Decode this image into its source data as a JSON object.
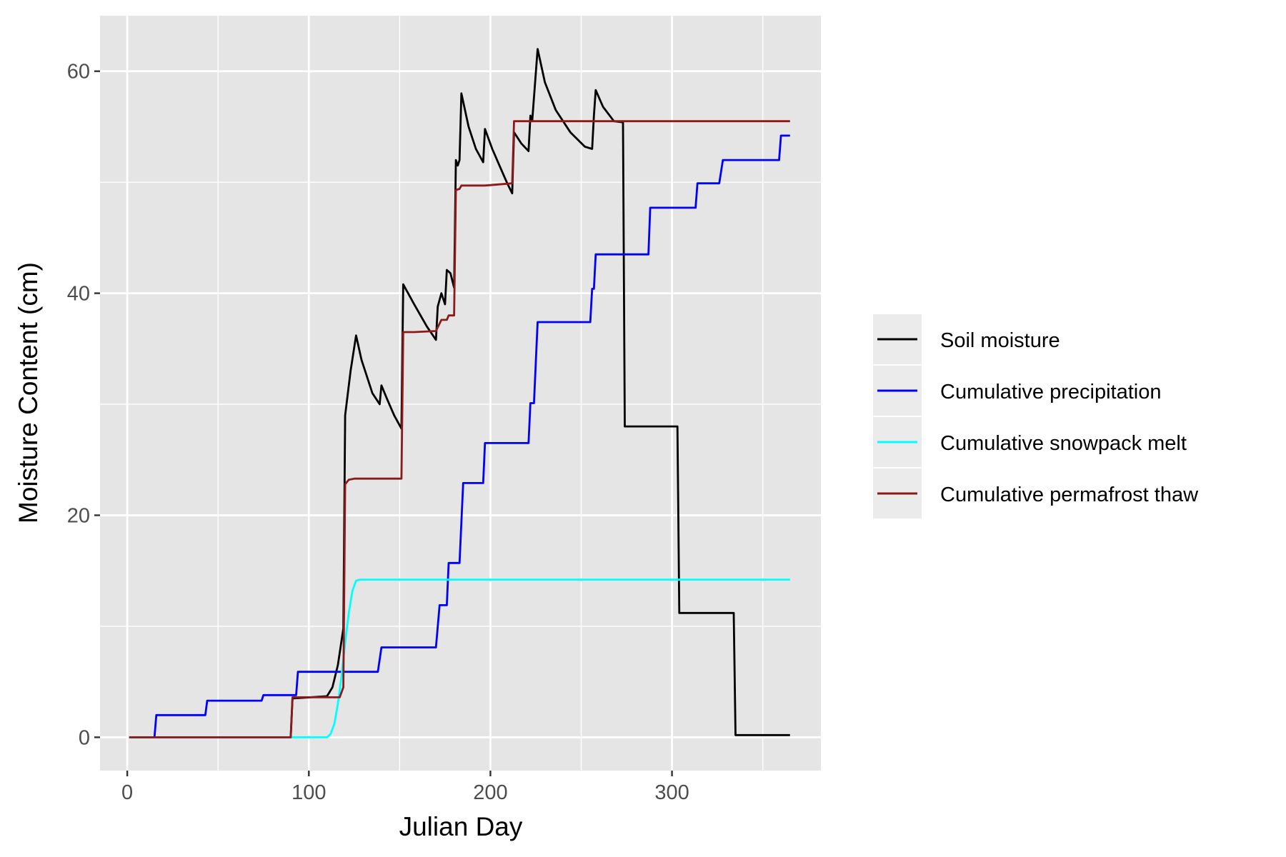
{
  "chart_data": {
    "type": "line",
    "title": "",
    "xlabel": "Julian Day",
    "ylabel": "Moisture Content (cm)",
    "xlim": [
      -15,
      382
    ],
    "ylim": [
      -3,
      65
    ],
    "x_ticks": [
      0,
      100,
      200,
      300
    ],
    "x_tick_labels": [
      "0",
      "100",
      "200",
      "300"
    ],
    "y_ticks": [
      0,
      20,
      40,
      60
    ],
    "y_tick_labels": [
      "0",
      "20",
      "40",
      "60"
    ],
    "grid": true,
    "legend_position": "right",
    "series": [
      {
        "name": "Soil moisture",
        "color": "#000000",
        "points": [
          [
            1,
            0
          ],
          [
            90,
            0
          ],
          [
            91,
            3.5
          ],
          [
            110,
            3.7
          ],
          [
            113,
            4.5
          ],
          [
            116,
            6.5
          ],
          [
            119,
            9.8
          ],
          [
            120,
            29
          ],
          [
            123,
            33
          ],
          [
            126,
            36.2
          ],
          [
            129,
            34
          ],
          [
            135,
            31
          ],
          [
            139,
            30
          ],
          [
            140,
            31.7
          ],
          [
            143,
            30.5
          ],
          [
            147,
            29
          ],
          [
            151,
            27.8
          ],
          [
            152,
            40.8
          ],
          [
            158,
            39
          ],
          [
            165,
            37
          ],
          [
            170,
            35.8
          ],
          [
            171,
            38.8
          ],
          [
            173,
            40
          ],
          [
            175,
            39
          ],
          [
            176,
            42.1
          ],
          [
            178,
            41.8
          ],
          [
            180,
            40.5
          ],
          [
            181,
            52
          ],
          [
            182,
            51.5
          ],
          [
            183,
            52
          ],
          [
            184,
            58
          ],
          [
            188,
            55
          ],
          [
            192,
            53
          ],
          [
            196,
            51.8
          ],
          [
            197,
            54.8
          ],
          [
            201,
            53
          ],
          [
            205,
            51.5
          ],
          [
            209,
            50
          ],
          [
            212,
            49
          ],
          [
            213,
            54.5
          ],
          [
            217,
            53.5
          ],
          [
            221,
            52.8
          ],
          [
            222,
            56
          ],
          [
            223,
            55.5
          ],
          [
            226,
            62
          ],
          [
            230,
            59
          ],
          [
            236,
            56.5
          ],
          [
            244,
            54.5
          ],
          [
            252,
            53.2
          ],
          [
            256,
            53
          ],
          [
            257,
            56
          ],
          [
            258,
            58.3
          ],
          [
            262,
            56.8
          ],
          [
            268,
            55.5
          ],
          [
            273,
            55.4
          ],
          [
            274,
            28
          ],
          [
            285,
            28
          ],
          [
            303,
            28
          ],
          [
            304,
            11.2
          ],
          [
            320,
            11.2
          ],
          [
            334,
            11.2
          ],
          [
            335,
            0.2
          ],
          [
            365,
            0.2
          ]
        ]
      },
      {
        "name": "Cumulative precipitation",
        "color": "#0000ff",
        "points": [
          [
            1,
            0
          ],
          [
            15,
            0
          ],
          [
            16,
            2
          ],
          [
            43,
            2
          ],
          [
            44,
            3.3
          ],
          [
            74,
            3.3
          ],
          [
            75,
            3.8
          ],
          [
            93,
            3.8
          ],
          [
            94,
            5.9
          ],
          [
            138,
            5.9
          ],
          [
            140,
            8.1
          ],
          [
            170,
            8.1
          ],
          [
            172,
            11.9
          ],
          [
            176,
            11.9
          ],
          [
            177,
            15.7
          ],
          [
            183,
            15.7
          ],
          [
            185,
            22.9
          ],
          [
            196,
            22.9
          ],
          [
            197,
            26.5
          ],
          [
            221,
            26.5
          ],
          [
            222,
            30.1
          ],
          [
            224,
            30.1
          ],
          [
            226,
            37.4
          ],
          [
            255,
            37.4
          ],
          [
            256,
            40.4
          ],
          [
            257,
            40.4
          ],
          [
            258,
            43.5
          ],
          [
            287,
            43.5
          ],
          [
            288,
            47.7
          ],
          [
            313,
            47.7
          ],
          [
            314,
            49.9
          ],
          [
            326,
            49.9
          ],
          [
            328,
            52
          ],
          [
            359,
            52
          ],
          [
            360,
            54.2
          ],
          [
            365,
            54.2
          ]
        ]
      },
      {
        "name": "Cumulative snowpack melt",
        "color": "#00ffff",
        "points": [
          [
            1,
            0
          ],
          [
            110,
            0
          ],
          [
            112,
            0.3
          ],
          [
            114,
            1.2
          ],
          [
            116,
            3
          ],
          [
            118,
            5.5
          ],
          [
            120,
            8.5
          ],
          [
            122,
            11.2
          ],
          [
            124,
            13.2
          ],
          [
            126,
            14.1
          ],
          [
            128,
            14.2
          ],
          [
            365,
            14.2
          ]
        ]
      },
      {
        "name": "Cumulative permafrost thaw",
        "color": "#8b1a1a",
        "points": [
          [
            1,
            0
          ],
          [
            90,
            0
          ],
          [
            91,
            3.6
          ],
          [
            117,
            3.6
          ],
          [
            119,
            4.5
          ],
          [
            120,
            22.8
          ],
          [
            122,
            23.2
          ],
          [
            125,
            23.3
          ],
          [
            151,
            23.3
          ],
          [
            152,
            36.5
          ],
          [
            158,
            36.5
          ],
          [
            170,
            36.6
          ],
          [
            173,
            37.6
          ],
          [
            176,
            37.6
          ],
          [
            177,
            38
          ],
          [
            180,
            38
          ],
          [
            181,
            49.3
          ],
          [
            183,
            49.4
          ],
          [
            184,
            49.7
          ],
          [
            197,
            49.7
          ],
          [
            212,
            49.9
          ],
          [
            213,
            55.5
          ],
          [
            365,
            55.5
          ]
        ]
      }
    ]
  }
}
